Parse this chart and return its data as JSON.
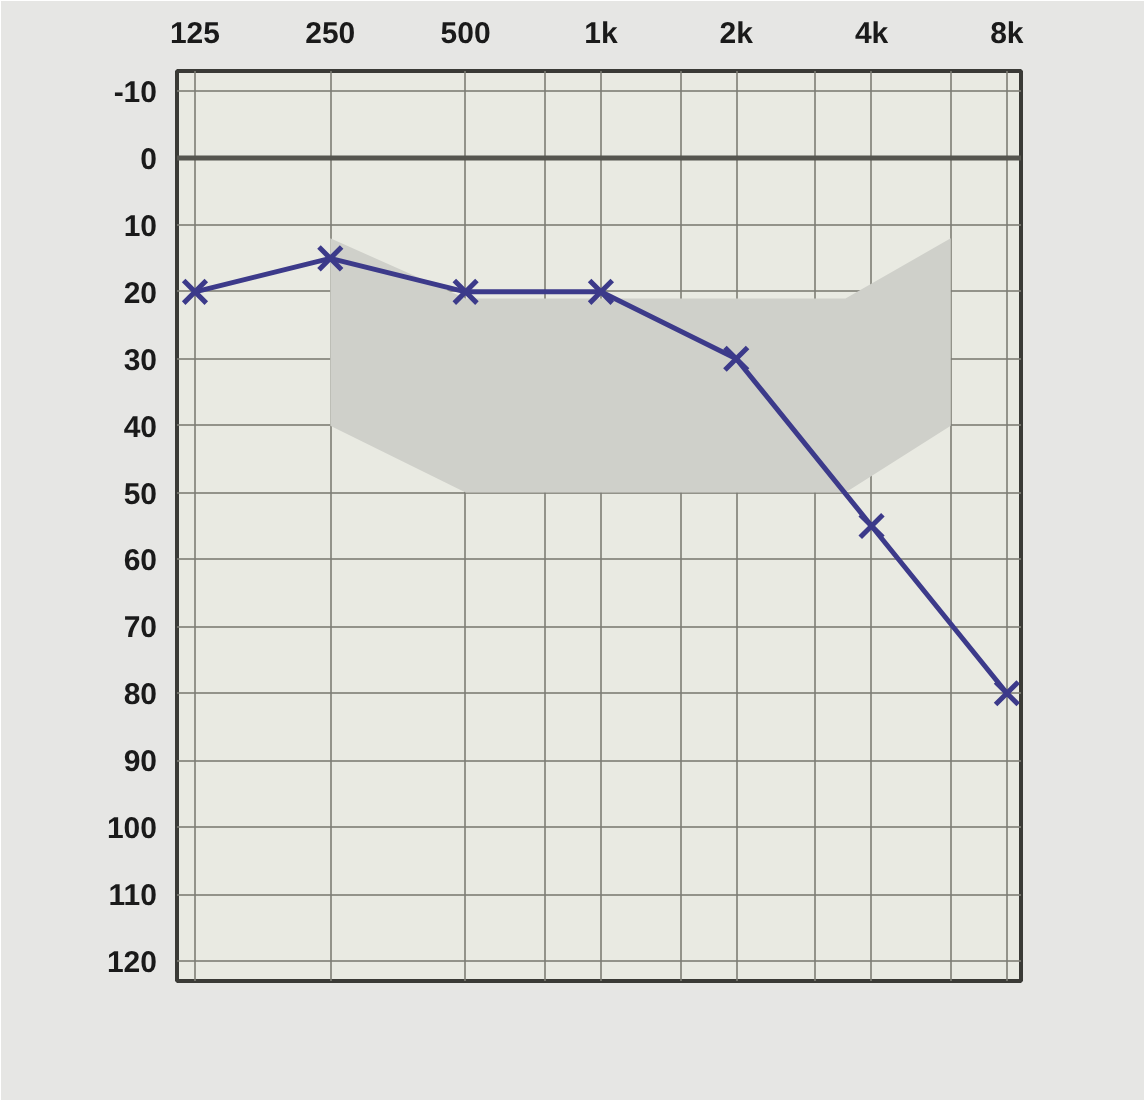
{
  "chart_data": {
    "type": "line",
    "x": [
      125,
      250,
      500,
      1000,
      2000,
      4000,
      8000
    ],
    "series": [
      {
        "type": "area",
        "color": "#cfd0ca",
        "x": [
          250,
          500,
          3500,
          6000
        ],
        "values": [
          null,
          null,
          null,
          null
        ],
        "lower": [
          12,
          21,
          21,
          12
        ],
        "upper": [
          40,
          50,
          50,
          40
        ]
      },
      {
        "color": "#3c3a8a",
        "values": [
          20,
          15,
          20,
          20,
          30,
          55,
          80
        ],
        "marker": "cross",
        "line_style": "solid"
      }
    ],
    "xlim": [
      114,
      8600
    ],
    "ylim": [
      123,
      -13
    ],
    "xticks": [
      125,
      250,
      500,
      {
        "value": 750,
        "label": null
      },
      {
        "value": 1000,
        "label": "1k"
      },
      {
        "value": 1500,
        "label": null
      },
      {
        "value": 2000,
        "label": "2k"
      },
      {
        "value": 3000,
        "label": null
      },
      {
        "value": 4000,
        "label": "4k"
      },
      {
        "value": 6000,
        "label": null
      },
      {
        "value": 8000,
        "label": "8k"
      }
    ],
    "yticks": [
      -10,
      0,
      10,
      20,
      30,
      40,
      50,
      60,
      70,
      80,
      90,
      100,
      110,
      120
    ],
    "log": "x",
    "grid": true,
    "ref_lines": [
      {
        "axis": "y",
        "value": 0,
        "color": "#55554f"
      }
    ]
  }
}
